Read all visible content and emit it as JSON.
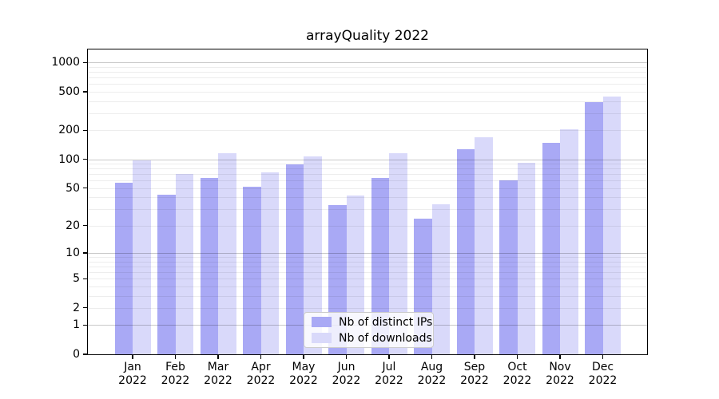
{
  "figure": {
    "title": "arrayQuality 2022"
  },
  "chart_data": {
    "type": "bar",
    "title": "arrayQuality 2022",
    "yscale": "log10(value+1)",
    "ylim": [
      0,
      1362
    ],
    "yticks": [
      1000,
      500,
      200,
      100,
      50,
      20,
      10,
      5,
      2,
      1,
      0
    ],
    "grid": {
      "major_values": [
        1,
        10,
        100,
        1000
      ],
      "minor_values": [
        2,
        3,
        4,
        5,
        6,
        7,
        8,
        9,
        20,
        30,
        40,
        50,
        60,
        70,
        80,
        90,
        200,
        300,
        400,
        500,
        600,
        700,
        800,
        900
      ]
    },
    "categories": [
      {
        "month": "Jan",
        "year": "2022"
      },
      {
        "month": "Feb",
        "year": "2022"
      },
      {
        "month": "Mar",
        "year": "2022"
      },
      {
        "month": "Apr",
        "year": "2022"
      },
      {
        "month": "May",
        "year": "2022"
      },
      {
        "month": "Jun",
        "year": "2022"
      },
      {
        "month": "Jul",
        "year": "2022"
      },
      {
        "month": "Aug",
        "year": "2022"
      },
      {
        "month": "Sep",
        "year": "2022"
      },
      {
        "month": "Oct",
        "year": "2022"
      },
      {
        "month": "Nov",
        "year": "2022"
      },
      {
        "month": "Dec",
        "year": "2022"
      }
    ],
    "series": [
      {
        "name": "Nb of distinct IPs",
        "color": "#a9a9f5",
        "values": [
          57,
          43,
          64,
          52,
          89,
          33,
          64,
          24,
          128,
          60,
          148,
          390
        ]
      },
      {
        "name": "Nb of downloads",
        "color": "#d9d9fa",
        "values": [
          97,
          71,
          116,
          73,
          107,
          42,
          115,
          34,
          170,
          93,
          206,
          450
        ]
      }
    ],
    "legend": {
      "position": "lower center"
    }
  }
}
